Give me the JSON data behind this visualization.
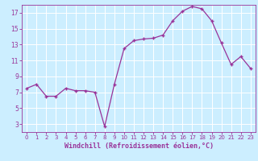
{
  "x": [
    0,
    1,
    2,
    3,
    4,
    5,
    6,
    7,
    8,
    9,
    10,
    11,
    12,
    13,
    14,
    15,
    16,
    17,
    18,
    19,
    20,
    21,
    22,
    23
  ],
  "y": [
    7.5,
    8.0,
    6.5,
    6.5,
    7.5,
    7.2,
    7.2,
    7.0,
    2.7,
    8.0,
    12.5,
    13.5,
    13.7,
    13.8,
    14.2,
    16.0,
    17.2,
    17.8,
    17.5,
    16.0,
    13.2,
    10.5,
    11.5,
    10.0
  ],
  "line_color": "#993399",
  "marker": "+",
  "bg_color": "#cceeff",
  "grid_color": "#ffffff",
  "xlabel": "Windchill (Refroidissement éolien,°C)",
  "xlabel_color": "#993399",
  "tick_color": "#993399",
  "ylim": [
    2,
    18
  ],
  "xlim": [
    -0.5,
    23.5
  ],
  "yticks": [
    3,
    5,
    7,
    9,
    11,
    13,
    15,
    17
  ],
  "xticks": [
    0,
    1,
    2,
    3,
    4,
    5,
    6,
    7,
    8,
    9,
    10,
    11,
    12,
    13,
    14,
    15,
    16,
    17,
    18,
    19,
    20,
    21,
    22,
    23
  ]
}
